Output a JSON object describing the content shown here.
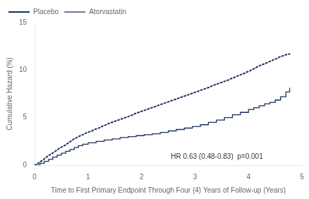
{
  "chart_data": {
    "type": "line",
    "xlabel": "Time to First Primary Endpoint Through Four (4) Years of Follow-up (Years)",
    "ylabel": "Cumulative Hazard (%)",
    "xlim": [
      0,
      5
    ],
    "ylim": [
      0,
      15
    ],
    "xticks": [
      0,
      1,
      2,
      3,
      4,
      5
    ],
    "yticks": [
      0,
      5,
      10,
      15
    ],
    "grid": false,
    "legend": "upper left",
    "annotation": {
      "text": "HR 0.63 (0.48-0.83)  p=0.001",
      "x": 2.55,
      "y": 0.5
    },
    "series": [
      {
        "name": "Placebo",
        "type": "line",
        "line_style": "dotted",
        "color": "#1a2f5e",
        "x": [
          0,
          0.08,
          0.13,
          0.18,
          0.22,
          0.27,
          0.32,
          0.37,
          0.42,
          0.47,
          0.52,
          0.57,
          0.62,
          0.67,
          0.72,
          0.77,
          0.82,
          0.87,
          0.92,
          0.97,
          1.02,
          1.07,
          1.12,
          1.17,
          1.22,
          1.27,
          1.32,
          1.37,
          1.42,
          1.47,
          1.52,
          1.57,
          1.62,
          1.67,
          1.72,
          1.77,
          1.82,
          1.87,
          1.92,
          1.97,
          2.02,
          2.07,
          2.12,
          2.17,
          2.22,
          2.27,
          2.32,
          2.37,
          2.42,
          2.47,
          2.52,
          2.57,
          2.62,
          2.67,
          2.72,
          2.77,
          2.82,
          2.87,
          2.92,
          2.97,
          3.02,
          3.07,
          3.12,
          3.17,
          3.22,
          3.27,
          3.32,
          3.37,
          3.42,
          3.47,
          3.52,
          3.57,
          3.62,
          3.67,
          3.72,
          3.77,
          3.82,
          3.87,
          3.92,
          3.97,
          4.02,
          4.07,
          4.12,
          4.17,
          4.22,
          4.27,
          4.32,
          4.37,
          4.42,
          4.47,
          4.52,
          4.57,
          4.62,
          4.67,
          4.72,
          4.77
        ],
        "values": [
          0,
          0.25,
          0.45,
          0.65,
          0.85,
          1.05,
          1.2,
          1.4,
          1.6,
          1.8,
          1.95,
          2.1,
          2.3,
          2.5,
          2.7,
          2.85,
          3.0,
          3.15,
          3.25,
          3.4,
          3.5,
          3.6,
          3.75,
          3.85,
          3.95,
          4.1,
          4.2,
          4.35,
          4.45,
          4.55,
          4.65,
          4.75,
          4.85,
          4.95,
          5.05,
          5.15,
          5.25,
          5.4,
          5.5,
          5.6,
          5.7,
          5.8,
          5.9,
          6.0,
          6.1,
          6.2,
          6.3,
          6.4,
          6.5,
          6.6,
          6.7,
          6.8,
          6.9,
          7.0,
          7.1,
          7.2,
          7.3,
          7.4,
          7.5,
          7.6,
          7.7,
          7.8,
          7.9,
          8.0,
          8.1,
          8.2,
          8.35,
          8.45,
          8.55,
          8.65,
          8.75,
          8.85,
          8.95,
          9.1,
          9.2,
          9.3,
          9.45,
          9.55,
          9.65,
          9.8,
          9.9,
          10.05,
          10.2,
          10.35,
          10.5,
          10.6,
          10.7,
          10.85,
          10.95,
          11.1,
          11.2,
          11.35,
          11.45,
          11.55,
          11.65,
          11.7
        ]
      },
      {
        "name": "Atorvastatin",
        "type": "step",
        "line_style": "solid",
        "color": "#1a2f5e",
        "x": [
          0,
          0.1,
          0.18,
          0.26,
          0.34,
          0.42,
          0.5,
          0.58,
          0.66,
          0.74,
          0.82,
          0.9,
          1.0,
          1.15,
          1.3,
          1.45,
          1.6,
          1.75,
          1.9,
          2.05,
          2.2,
          2.35,
          2.5,
          2.65,
          2.8,
          2.95,
          3.1,
          3.25,
          3.4,
          3.55,
          3.7,
          3.85,
          4.0,
          4.1,
          4.2,
          4.3,
          4.4,
          4.5,
          4.6,
          4.7,
          4.77
        ],
        "values": [
          0,
          0.2,
          0.4,
          0.6,
          0.85,
          1.05,
          1.25,
          1.45,
          1.65,
          1.85,
          2.05,
          2.2,
          2.35,
          2.5,
          2.65,
          2.75,
          2.9,
          3.0,
          3.1,
          3.2,
          3.3,
          3.45,
          3.6,
          3.75,
          3.9,
          4.05,
          4.25,
          4.5,
          4.75,
          5.0,
          5.3,
          5.55,
          5.85,
          6.05,
          6.25,
          6.45,
          6.6,
          6.85,
          7.2,
          7.7,
          8.1
        ]
      }
    ]
  }
}
